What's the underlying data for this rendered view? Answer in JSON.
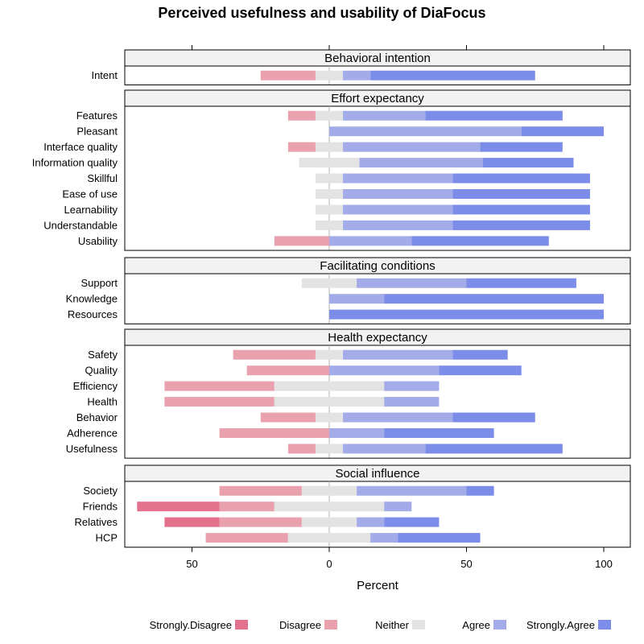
{
  "chart_data": {
    "type": "bar",
    "subtype": "diverging-stacked-likert",
    "title": "Perceived usefulness and usability of DiaFocus",
    "xlabel": "Percent",
    "ylabel": "",
    "xlim": [
      -75,
      105
    ],
    "xticks": [
      -50,
      0,
      50,
      100
    ],
    "tick_labels": [
      "50",
      "0",
      "50",
      "100"
    ],
    "categories": [
      "Strongly.Disagree",
      "Disagree",
      "Neither",
      "Agree",
      "Strongly.Agree"
    ],
    "colors": [
      "#e4718b",
      "#e9a1ae",
      "#e3e3e3",
      "#a3abe8",
      "#7b8de8"
    ],
    "panels": [
      {
        "title": "Behavioral intention",
        "items": [
          {
            "label": "Intent",
            "values": [
              0,
              20,
              10,
              10,
              60
            ]
          }
        ]
      },
      {
        "title": "Effort expectancy",
        "items": [
          {
            "label": "Features",
            "values": [
              0,
              10,
              10,
              30,
              50
            ]
          },
          {
            "label": "Pleasant",
            "values": [
              0,
              0,
              0,
              70,
              30
            ]
          },
          {
            "label": "Interface quality",
            "values": [
              0,
              10,
              10,
              50,
              30
            ]
          },
          {
            "label": "Information quality",
            "values": [
              0,
              0,
              22,
              45,
              33
            ]
          },
          {
            "label": "Skillful",
            "values": [
              0,
              0,
              10,
              40,
              50
            ]
          },
          {
            "label": "Ease of use",
            "values": [
              0,
              0,
              10,
              40,
              50
            ]
          },
          {
            "label": "Learnability",
            "values": [
              0,
              0,
              10,
              40,
              50
            ]
          },
          {
            "label": "Understandable",
            "values": [
              0,
              0,
              10,
              40,
              50
            ]
          },
          {
            "label": "Usability",
            "values": [
              0,
              20,
              0,
              30,
              50
            ]
          }
        ]
      },
      {
        "title": "Facilitating conditions",
        "items": [
          {
            "label": "Support",
            "values": [
              0,
              0,
              20,
              40,
              40
            ]
          },
          {
            "label": "Knowledge",
            "values": [
              0,
              0,
              0,
              20,
              80
            ]
          },
          {
            "label": "Resources",
            "values": [
              0,
              0,
              0,
              0,
              100
            ]
          }
        ]
      },
      {
        "title": "Health expectancy",
        "items": [
          {
            "label": "Safety",
            "values": [
              0,
              30,
              10,
              40,
              20
            ]
          },
          {
            "label": "Quality",
            "values": [
              0,
              30,
              0,
              40,
              30
            ]
          },
          {
            "label": "Efficiency",
            "values": [
              0,
              40,
              40,
              20,
              0
            ]
          },
          {
            "label": "Health",
            "values": [
              0,
              40,
              40,
              20,
              0
            ]
          },
          {
            "label": "Behavior",
            "values": [
              0,
              20,
              10,
              40,
              30
            ]
          },
          {
            "label": "Adherence",
            "values": [
              0,
              40,
              0,
              20,
              40
            ]
          },
          {
            "label": "Usefulness",
            "values": [
              0,
              10,
              10,
              30,
              50
            ]
          }
        ]
      },
      {
        "title": "Social influence",
        "items": [
          {
            "label": "Society",
            "values": [
              0,
              30,
              20,
              40,
              10
            ]
          },
          {
            "label": "Friends",
            "values": [
              30,
              20,
              40,
              10,
              0
            ]
          },
          {
            "label": "Relatives",
            "values": [
              20,
              30,
              20,
              10,
              20
            ]
          },
          {
            "label": "HCP",
            "values": [
              0,
              30,
              30,
              10,
              30
            ]
          }
        ]
      }
    ]
  }
}
